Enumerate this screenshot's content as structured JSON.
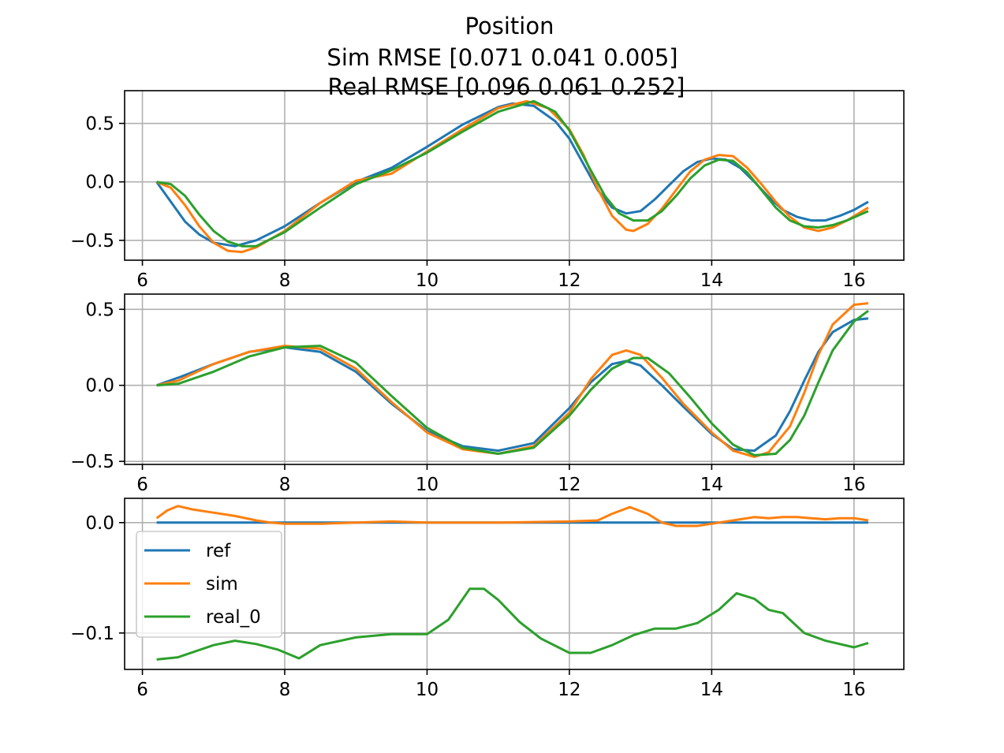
{
  "figure": {
    "title_lines": [
      "Position",
      "Sim RMSE [0.071 0.041 0.005]",
      "Real RMSE [0.096 0.061 0.252]"
    ]
  },
  "colors": {
    "ref": "#1f77b4",
    "sim": "#ff7f0e",
    "real_0": "#2ca02c",
    "grid": "#b0b0b0"
  },
  "chart_data": [
    {
      "type": "line",
      "xlim": [
        5.75,
        16.7
      ],
      "ylim": [
        -0.67,
        0.78
      ],
      "xticks": [
        6,
        8,
        10,
        12,
        14,
        16
      ],
      "xtick_labels": [
        "6",
        "8",
        "10",
        "12",
        "14",
        "16"
      ],
      "yticks": [
        0.5,
        0.0,
        -0.5
      ],
      "ytick_labels": [
        "0.5",
        "0.0",
        "−0.5"
      ],
      "grid": true,
      "series": [
        {
          "key": "ref",
          "x": [
            6.2,
            6.4,
            6.6,
            6.8,
            7.0,
            7.3,
            7.6,
            8.0,
            8.5,
            9.0,
            9.5,
            10.0,
            10.5,
            11.0,
            11.2,
            11.5,
            11.8,
            12.0,
            12.2,
            12.4,
            12.6,
            12.8,
            13.0,
            13.2,
            13.4,
            13.6,
            13.8,
            14.0,
            14.2,
            14.4,
            14.6,
            14.8,
            15.0,
            15.2,
            15.4,
            15.6,
            15.8,
            16.0,
            16.2
          ],
          "y": [
            0.0,
            -0.17,
            -0.34,
            -0.45,
            -0.52,
            -0.55,
            -0.5,
            -0.38,
            -0.18,
            0.0,
            0.12,
            0.3,
            0.49,
            0.64,
            0.67,
            0.65,
            0.52,
            0.37,
            0.15,
            -0.07,
            -0.22,
            -0.27,
            -0.25,
            -0.15,
            -0.03,
            0.09,
            0.17,
            0.2,
            0.19,
            0.12,
            0.0,
            -0.13,
            -0.24,
            -0.3,
            -0.33,
            -0.33,
            -0.29,
            -0.24,
            -0.17
          ]
        },
        {
          "key": "sim",
          "x": [
            6.2,
            6.4,
            6.6,
            6.8,
            7.0,
            7.2,
            7.4,
            7.6,
            8.0,
            8.5,
            9.0,
            9.5,
            10.0,
            10.5,
            11.0,
            11.4,
            11.7,
            12.0,
            12.2,
            12.4,
            12.6,
            12.8,
            12.9,
            13.1,
            13.3,
            13.5,
            13.7,
            13.9,
            14.1,
            14.3,
            14.5,
            14.7,
            14.9,
            15.1,
            15.3,
            15.5,
            15.7,
            15.9,
            16.2
          ],
          "y": [
            0.0,
            -0.05,
            -0.2,
            -0.38,
            -0.52,
            -0.59,
            -0.6,
            -0.56,
            -0.42,
            -0.18,
            0.01,
            0.07,
            0.26,
            0.45,
            0.63,
            0.69,
            0.63,
            0.45,
            0.23,
            -0.06,
            -0.29,
            -0.41,
            -0.42,
            -0.36,
            -0.23,
            -0.07,
            0.09,
            0.19,
            0.23,
            0.22,
            0.12,
            -0.02,
            -0.17,
            -0.3,
            -0.39,
            -0.42,
            -0.39,
            -0.33,
            -0.22
          ]
        },
        {
          "key": "real_0",
          "x": [
            6.2,
            6.4,
            6.6,
            6.8,
            7.0,
            7.2,
            7.4,
            7.6,
            8.0,
            8.5,
            9.0,
            9.5,
            10.0,
            10.5,
            11.0,
            11.5,
            11.8,
            12.0,
            12.3,
            12.5,
            12.7,
            12.9,
            13.1,
            13.3,
            13.5,
            13.7,
            13.9,
            14.1,
            14.3,
            14.5,
            14.7,
            14.9,
            15.1,
            15.3,
            15.5,
            15.7,
            15.9,
            16.2
          ],
          "y": [
            0.0,
            -0.02,
            -0.12,
            -0.28,
            -0.42,
            -0.51,
            -0.55,
            -0.55,
            -0.43,
            -0.22,
            -0.02,
            0.1,
            0.25,
            0.43,
            0.6,
            0.69,
            0.6,
            0.44,
            0.1,
            -0.12,
            -0.27,
            -0.33,
            -0.33,
            -0.25,
            -0.12,
            0.03,
            0.14,
            0.19,
            0.18,
            0.08,
            -0.07,
            -0.22,
            -0.33,
            -0.38,
            -0.39,
            -0.37,
            -0.33,
            -0.25
          ]
        }
      ]
    },
    {
      "type": "line",
      "xlim": [
        5.75,
        16.7
      ],
      "ylim": [
        -0.52,
        0.6
      ],
      "xticks": [
        6,
        8,
        10,
        12,
        14,
        16
      ],
      "xtick_labels": [
        "6",
        "8",
        "10",
        "12",
        "14",
        "16"
      ],
      "yticks": [
        0.5,
        0.0,
        -0.5
      ],
      "ytick_labels": [
        "0.5",
        "0.0",
        "−0.5"
      ],
      "grid": true,
      "series": [
        {
          "key": "ref",
          "x": [
            6.2,
            6.5,
            7.0,
            7.5,
            8.0,
            8.5,
            9.0,
            9.5,
            10.0,
            10.5,
            11.0,
            11.5,
            12.0,
            12.3,
            12.6,
            12.8,
            13.0,
            13.3,
            13.6,
            14.0,
            14.3,
            14.6,
            14.9,
            15.1,
            15.3,
            15.5,
            15.7,
            16.0,
            16.2
          ],
          "y": [
            0.0,
            0.05,
            0.14,
            0.22,
            0.25,
            0.22,
            0.09,
            -0.12,
            -0.3,
            -0.4,
            -0.43,
            -0.38,
            -0.15,
            0.02,
            0.14,
            0.16,
            0.13,
            0.0,
            -0.14,
            -0.32,
            -0.42,
            -0.43,
            -0.33,
            -0.17,
            0.03,
            0.22,
            0.35,
            0.43,
            0.44
          ]
        },
        {
          "key": "sim",
          "x": [
            6.2,
            6.5,
            7.0,
            7.5,
            8.0,
            8.5,
            9.0,
            9.5,
            10.0,
            10.5,
            11.0,
            11.5,
            12.0,
            12.3,
            12.6,
            12.8,
            13.0,
            13.3,
            13.6,
            14.0,
            14.3,
            14.6,
            14.8,
            15.1,
            15.3,
            15.5,
            15.7,
            16.0,
            16.2
          ],
          "y": [
            0.0,
            0.03,
            0.14,
            0.22,
            0.26,
            0.24,
            0.11,
            -0.11,
            -0.31,
            -0.42,
            -0.45,
            -0.4,
            -0.18,
            0.04,
            0.2,
            0.23,
            0.2,
            0.05,
            -0.12,
            -0.31,
            -0.43,
            -0.47,
            -0.44,
            -0.27,
            -0.05,
            0.2,
            0.4,
            0.53,
            0.54
          ]
        },
        {
          "key": "real_0",
          "x": [
            6.2,
            6.5,
            7.0,
            7.5,
            8.0,
            8.5,
            9.0,
            9.5,
            10.0,
            10.5,
            11.0,
            11.5,
            12.0,
            12.3,
            12.6,
            12.9,
            13.1,
            13.4,
            13.7,
            14.0,
            14.3,
            14.6,
            14.9,
            15.1,
            15.3,
            15.5,
            15.7,
            16.0,
            16.2
          ],
          "y": [
            0.0,
            0.01,
            0.09,
            0.19,
            0.25,
            0.26,
            0.15,
            -0.07,
            -0.28,
            -0.41,
            -0.45,
            -0.41,
            -0.2,
            -0.03,
            0.11,
            0.18,
            0.18,
            0.08,
            -0.08,
            -0.25,
            -0.39,
            -0.46,
            -0.45,
            -0.36,
            -0.2,
            0.02,
            0.23,
            0.42,
            0.49
          ]
        }
      ]
    },
    {
      "type": "line",
      "xlim": [
        5.75,
        16.7
      ],
      "ylim": [
        -0.133,
        0.022
      ],
      "xticks": [
        6,
        8,
        10,
        12,
        14,
        16
      ],
      "xtick_labels": [
        "6",
        "8",
        "10",
        "12",
        "14",
        "16"
      ],
      "yticks": [
        0.0,
        -0.1
      ],
      "ytick_labels": [
        "0.0",
        "−0.1"
      ],
      "grid": true,
      "legend": {
        "placement": "center-left",
        "entries": [
          "ref",
          "sim",
          "real_0"
        ]
      },
      "series": [
        {
          "key": "ref",
          "name": "ref",
          "x": [
            6.2,
            16.2
          ],
          "y": [
            0.0,
            0.0
          ]
        },
        {
          "key": "sim",
          "name": "sim",
          "x": [
            6.2,
            6.35,
            6.5,
            6.7,
            7.0,
            7.3,
            7.6,
            7.8,
            8.0,
            8.5,
            9.0,
            9.5,
            10.0,
            11.0,
            12.0,
            12.4,
            12.6,
            12.85,
            13.1,
            13.3,
            13.5,
            13.8,
            14.1,
            14.4,
            14.6,
            14.8,
            15.0,
            15.2,
            15.4,
            15.6,
            15.8,
            16.0,
            16.2
          ],
          "y": [
            0.004,
            0.011,
            0.015,
            0.012,
            0.009,
            0.006,
            0.002,
            0.0,
            -0.001,
            -0.001,
            0.0,
            0.001,
            0.0,
            0.0,
            0.001,
            0.002,
            0.008,
            0.014,
            0.008,
            0.0,
            -0.003,
            -0.003,
            0.0,
            0.003,
            0.005,
            0.004,
            0.005,
            0.005,
            0.004,
            0.003,
            0.004,
            0.004,
            0.002
          ]
        },
        {
          "key": "real_0",
          "name": "real_0",
          "x": [
            6.2,
            6.5,
            7.0,
            7.3,
            7.6,
            7.9,
            8.2,
            8.5,
            9.0,
            9.5,
            10.0,
            10.3,
            10.6,
            10.8,
            11.0,
            11.3,
            11.6,
            12.0,
            12.3,
            12.6,
            12.9,
            13.2,
            13.5,
            13.8,
            14.1,
            14.35,
            14.6,
            14.8,
            15.0,
            15.3,
            15.6,
            16.0,
            16.2
          ],
          "y": [
            -0.124,
            -0.122,
            -0.111,
            -0.107,
            -0.11,
            -0.115,
            -0.123,
            -0.111,
            -0.104,
            -0.101,
            -0.101,
            -0.088,
            -0.06,
            -0.06,
            -0.07,
            -0.09,
            -0.105,
            -0.118,
            -0.118,
            -0.111,
            -0.102,
            -0.096,
            -0.096,
            -0.091,
            -0.079,
            -0.064,
            -0.069,
            -0.079,
            -0.082,
            -0.1,
            -0.107,
            -0.113,
            -0.109
          ]
        }
      ]
    }
  ]
}
